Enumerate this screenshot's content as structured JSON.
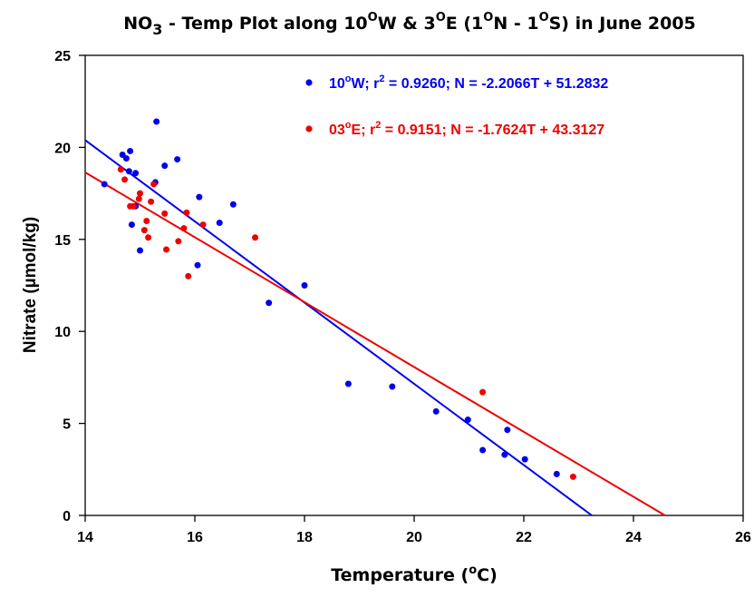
{
  "chart_data": {
    "type": "scatter",
    "title": {
      "pre": "NO",
      "sub": "3",
      "mid1": " - Temp Plot along 10",
      "sup1": "O",
      "mid2": "W & 3",
      "sup2": "O",
      "mid3": "E (1",
      "sup3": "O",
      "mid4": "N - 1",
      "sup4": "O",
      "post": "S) in June 2005"
    },
    "xlabel": {
      "pre": "Temperature (",
      "sup": "o",
      "post": "C)"
    },
    "ylabel": "Nitrate (µmol/kg)",
    "xlim": [
      14,
      26
    ],
    "ylim": [
      0,
      25
    ],
    "xticks": [
      14,
      16,
      18,
      20,
      22,
      24,
      26
    ],
    "yticks": [
      0,
      5,
      10,
      15,
      20,
      25
    ],
    "grid": false,
    "legend_position": "top-right",
    "series": [
      {
        "name": "10°W",
        "color": "#0000ee",
        "legend": {
          "pre": "10",
          "sup1": "o",
          "mid1": "W; r",
          "sup2": "2",
          "post": " = 0.9260; N = -2.2066T + 51.2832"
        },
        "fit": {
          "slope": -2.2066,
          "intercept": 51.2832
        },
        "points": [
          [
            14.35,
            18.0
          ],
          [
            14.68,
            19.6
          ],
          [
            14.75,
            19.4
          ],
          [
            14.8,
            18.7
          ],
          [
            14.82,
            19.8
          ],
          [
            14.92,
            18.6
          ],
          [
            14.85,
            15.8
          ],
          [
            14.92,
            16.8
          ],
          [
            15.0,
            14.4
          ],
          [
            15.28,
            18.1
          ],
          [
            15.3,
            21.4
          ],
          [
            15.45,
            19.0
          ],
          [
            15.68,
            19.35
          ],
          [
            16.05,
            13.6
          ],
          [
            16.08,
            17.3
          ],
          [
            16.45,
            15.9
          ],
          [
            16.7,
            16.9
          ],
          [
            17.35,
            11.55
          ],
          [
            18.0,
            12.5
          ],
          [
            18.8,
            7.15
          ],
          [
            19.6,
            7.0
          ],
          [
            20.4,
            5.65
          ],
          [
            20.98,
            5.2
          ],
          [
            21.25,
            3.55
          ],
          [
            21.7,
            4.65
          ],
          [
            21.65,
            3.3
          ],
          [
            22.02,
            3.05
          ],
          [
            22.6,
            2.25
          ]
        ]
      },
      {
        "name": "03°E",
        "color": "#ee0000",
        "legend": {
          "pre": "03",
          "sup1": "o",
          "mid1": "E;  r",
          "sup2": "2",
          "post": " = 0.9151;  N = -1.7624T + 43.3127"
        },
        "fit": {
          "slope": -1.7624,
          "intercept": 43.3127
        },
        "points": [
          [
            14.65,
            18.8
          ],
          [
            14.72,
            18.25
          ],
          [
            14.82,
            16.8
          ],
          [
            14.88,
            16.8
          ],
          [
            14.98,
            17.2
          ],
          [
            15.0,
            17.5
          ],
          [
            15.08,
            15.5
          ],
          [
            15.12,
            16.0
          ],
          [
            15.15,
            15.1
          ],
          [
            15.2,
            17.05
          ],
          [
            15.25,
            18.0
          ],
          [
            15.45,
            16.4
          ],
          [
            15.48,
            14.45
          ],
          [
            15.7,
            14.9
          ],
          [
            15.8,
            15.6
          ],
          [
            15.85,
            16.45
          ],
          [
            15.88,
            13.0
          ],
          [
            16.15,
            15.8
          ],
          [
            17.1,
            15.1
          ],
          [
            21.25,
            6.7
          ],
          [
            22.9,
            2.1
          ]
        ]
      }
    ]
  }
}
